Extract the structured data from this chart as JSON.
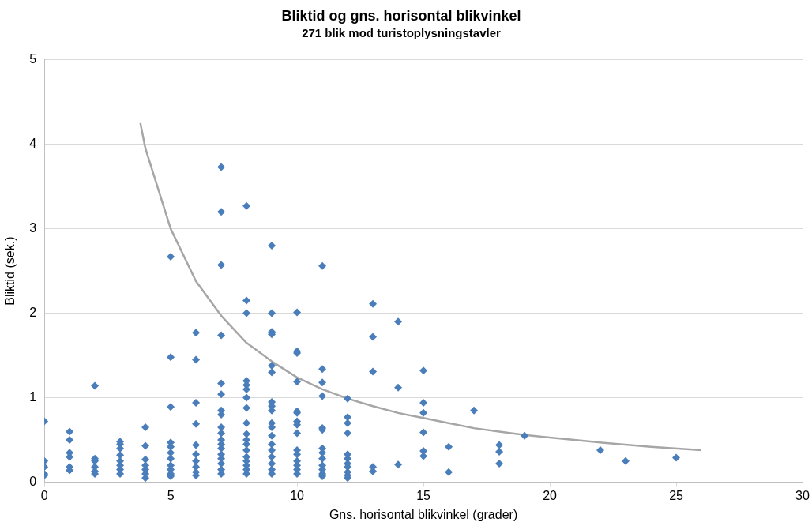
{
  "chart_data": {
    "type": "scatter",
    "title": "Bliktid og gns. horisontal blikvinkel",
    "subtitle": "271 blik mod turistoplysningstavler",
    "xlabel": "Gns. horisontal blikvinkel (grader)",
    "ylabel": "Bliktid (sek.)",
    "xlim": [
      0,
      30
    ],
    "xticks": [
      0,
      5,
      10,
      15,
      20,
      25,
      30
    ],
    "ylim": [
      0,
      5
    ],
    "yticks": [
      0,
      1,
      2,
      3,
      4,
      5
    ],
    "grid": "y",
    "legend": false,
    "marker": "diamond",
    "series": [
      {
        "type": "scatter",
        "color": "#4a7ebb",
        "x": [
          0,
          0,
          0,
          0,
          0,
          1,
          1,
          1,
          1,
          1,
          1,
          2,
          2,
          2,
          2,
          2,
          2,
          3,
          3,
          3,
          3,
          3,
          3,
          3,
          3,
          4,
          4,
          4,
          4,
          4,
          4,
          4,
          5,
          5,
          5,
          5,
          5,
          5,
          5,
          5,
          5,
          5,
          5,
          6,
          6,
          6,
          6,
          6,
          6,
          6,
          6,
          6,
          6,
          7,
          7,
          7,
          7,
          7,
          7,
          7,
          7,
          7,
          7,
          7,
          7,
          7,
          7,
          7,
          7,
          7,
          7,
          8,
          8,
          8,
          8,
          8,
          8,
          8,
          8,
          8,
          8,
          8,
          8,
          8,
          8,
          8,
          8,
          8,
          8,
          9,
          9,
          9,
          9,
          9,
          9,
          9,
          9,
          9,
          9,
          9,
          9,
          9,
          9,
          9,
          9,
          9,
          9,
          10,
          10,
          10,
          10,
          10,
          10,
          10,
          10,
          10,
          10,
          10,
          10,
          10,
          10,
          10,
          11,
          11,
          11,
          11,
          11,
          11,
          11,
          11,
          11,
          11,
          11,
          11,
          11,
          12,
          12,
          12,
          12,
          12,
          12,
          12,
          12,
          12,
          12,
          12,
          13,
          13,
          13,
          13,
          13,
          14,
          14,
          14,
          15,
          15,
          15,
          15,
          15,
          15,
          16,
          16,
          17,
          18,
          18,
          18,
          19,
          22,
          23,
          25
        ],
        "values": [
          0.72,
          0.25,
          0.18,
          0.1,
          0.08,
          0.6,
          0.5,
          0.35,
          0.3,
          0.18,
          0.14,
          1.14,
          0.28,
          0.25,
          0.18,
          0.13,
          0.1,
          0.48,
          0.45,
          0.4,
          0.32,
          0.25,
          0.2,
          0.15,
          0.1,
          0.65,
          0.43,
          0.27,
          0.2,
          0.15,
          0.1,
          0.05,
          2.67,
          1.48,
          0.89,
          0.47,
          0.42,
          0.35,
          0.28,
          0.2,
          0.15,
          0.1,
          0.07,
          1.77,
          1.45,
          0.94,
          0.69,
          0.44,
          0.33,
          0.25,
          0.18,
          0.12,
          0.08,
          3.73,
          3.2,
          2.57,
          1.74,
          1.17,
          1.04,
          0.85,
          0.8,
          0.65,
          0.58,
          0.5,
          0.45,
          0.4,
          0.33,
          0.28,
          0.22,
          0.15,
          0.1,
          3.27,
          2.15,
          2.0,
          1.2,
          1.15,
          1.1,
          1.0,
          0.88,
          0.7,
          0.57,
          0.5,
          0.45,
          0.38,
          0.3,
          0.25,
          0.2,
          0.15,
          0.1,
          2.8,
          2.0,
          1.78,
          1.75,
          1.38,
          1.3,
          0.95,
          0.9,
          0.85,
          0.7,
          0.65,
          0.55,
          0.45,
          0.38,
          0.3,
          0.22,
          0.15,
          0.1,
          2.01,
          1.55,
          1.53,
          1.19,
          0.84,
          0.82,
          0.72,
          0.68,
          0.58,
          0.38,
          0.33,
          0.25,
          0.2,
          0.15,
          0.1,
          2.56,
          1.34,
          1.18,
          1.02,
          0.64,
          0.62,
          0.4,
          0.35,
          0.28,
          0.2,
          0.15,
          0.1,
          0.07,
          0.99,
          0.77,
          0.7,
          0.58,
          0.33,
          0.28,
          0.22,
          0.18,
          0.12,
          0.08,
          0.05,
          2.11,
          1.72,
          1.31,
          0.18,
          0.13,
          1.9,
          1.12,
          0.21,
          1.32,
          0.94,
          0.82,
          0.59,
          0.37,
          0.31,
          0.42,
          0.12,
          0.85,
          0.44,
          0.36,
          0.22,
          0.55,
          0.38,
          0.25,
          0.29
        ]
      },
      {
        "type": "line",
        "color": "#a6a6a6",
        "marker": "none",
        "x": [
          3.8,
          4,
          5,
          6,
          7,
          8,
          9,
          10,
          11,
          12,
          13,
          14,
          15,
          16,
          17,
          18,
          19,
          20,
          22,
          24,
          26
        ],
        "values": [
          4.25,
          3.95,
          3.0,
          2.38,
          1.97,
          1.65,
          1.43,
          1.24,
          1.1,
          0.99,
          0.9,
          0.82,
          0.76,
          0.7,
          0.64,
          0.6,
          0.56,
          0.53,
          0.47,
          0.42,
          0.38
        ]
      }
    ]
  }
}
